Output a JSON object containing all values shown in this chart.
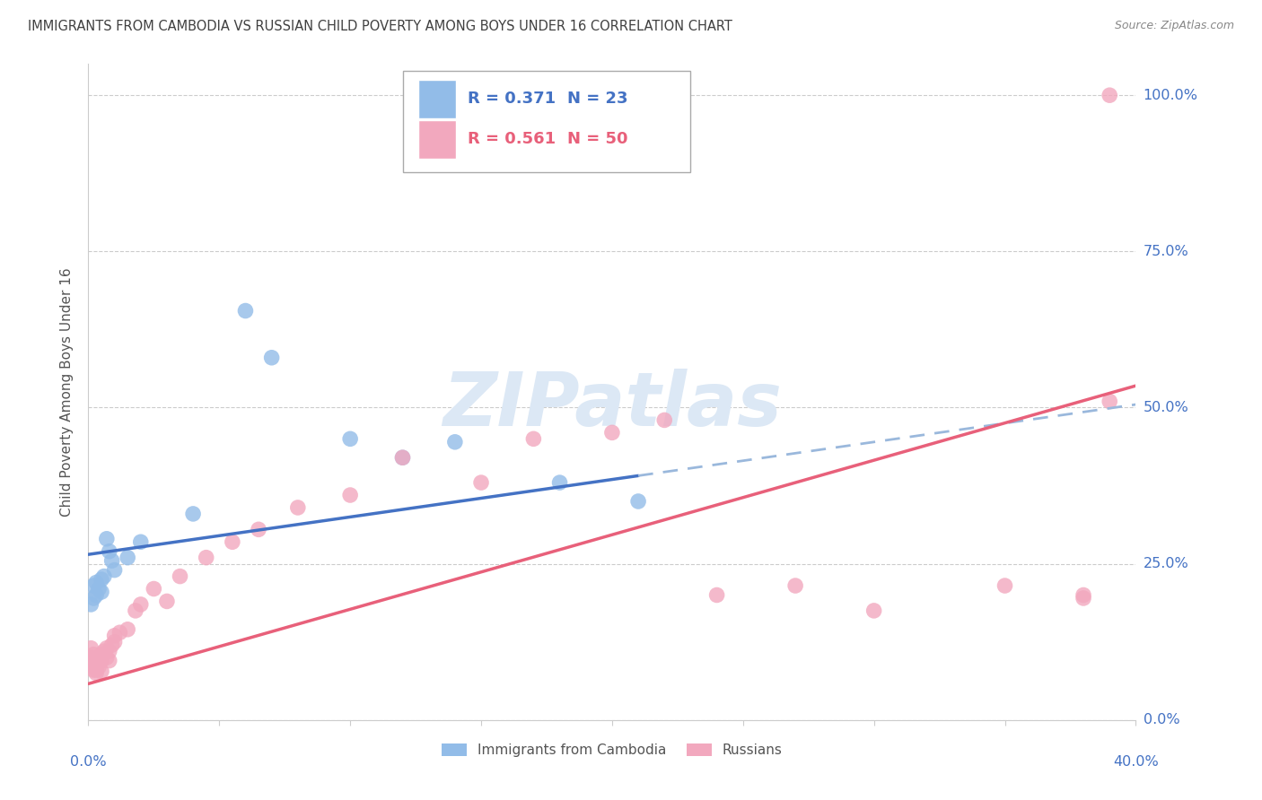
{
  "title": "IMMIGRANTS FROM CAMBODIA VS RUSSIAN CHILD POVERTY AMONG BOYS UNDER 16 CORRELATION CHART",
  "source": "Source: ZipAtlas.com",
  "ylabel": "Child Poverty Among Boys Under 16",
  "ytick_values": [
    0.0,
    0.25,
    0.5,
    0.75,
    1.0
  ],
  "ytick_labels": [
    "0.0%",
    "25.0%",
    "50.0%",
    "75.0%",
    "100.0%"
  ],
  "xlim": [
    0.0,
    0.4
  ],
  "ylim": [
    0.0,
    1.05
  ],
  "xtick_left_label": "0.0%",
  "xtick_right_label": "40.0%",
  "watermark": "ZIPatlas",
  "legend_r1": "R = 0.371",
  "legend_n1": "N = 23",
  "legend_r2": "R = 0.561",
  "legend_n2": "N = 50",
  "series1_color": "#92bce8",
  "series2_color": "#f2a8be",
  "series1_name": "Immigrants from Cambodia",
  "series2_name": "Russians",
  "line1_solid_color": "#4472c4",
  "line1_dashed_color": "#9ab8dc",
  "line2_color": "#e8607a",
  "grid_color": "#cccccc",
  "title_color": "#404040",
  "axis_label_color": "#4472c4",
  "source_color": "#888888",
  "ylabel_color": "#555555",
  "watermark_color": "#dce8f5",
  "legend_border_color": "#aaaaaa",
  "legend_text_color_blue": "#4472c4",
  "legend_text_color_pink": "#e8607a",
  "cambodia_x": [
    0.001,
    0.002,
    0.002,
    0.003,
    0.003,
    0.004,
    0.005,
    0.005,
    0.006,
    0.007,
    0.008,
    0.009,
    0.01,
    0.015,
    0.02,
    0.04,
    0.06,
    0.07,
    0.1,
    0.12,
    0.14,
    0.18,
    0.21
  ],
  "cambodia_y": [
    0.185,
    0.195,
    0.215,
    0.2,
    0.22,
    0.21,
    0.205,
    0.225,
    0.23,
    0.29,
    0.27,
    0.255,
    0.24,
    0.26,
    0.285,
    0.33,
    0.655,
    0.58,
    0.45,
    0.42,
    0.445,
    0.38,
    0.35
  ],
  "russian_x": [
    0.001,
    0.001,
    0.001,
    0.002,
    0.002,
    0.002,
    0.002,
    0.003,
    0.003,
    0.003,
    0.003,
    0.004,
    0.004,
    0.004,
    0.005,
    0.005,
    0.005,
    0.006,
    0.007,
    0.007,
    0.008,
    0.008,
    0.009,
    0.01,
    0.01,
    0.012,
    0.015,
    0.018,
    0.02,
    0.025,
    0.03,
    0.035,
    0.045,
    0.055,
    0.065,
    0.08,
    0.1,
    0.12,
    0.15,
    0.17,
    0.2,
    0.22,
    0.24,
    0.27,
    0.3,
    0.35,
    0.38,
    0.39,
    0.38,
    0.39
  ],
  "russian_y": [
    0.1,
    0.115,
    0.095,
    0.085,
    0.09,
    0.08,
    0.105,
    0.075,
    0.08,
    0.095,
    0.088,
    0.085,
    0.092,
    0.1,
    0.095,
    0.078,
    0.105,
    0.11,
    0.1,
    0.115,
    0.095,
    0.11,
    0.12,
    0.125,
    0.135,
    0.14,
    0.145,
    0.175,
    0.185,
    0.21,
    0.19,
    0.23,
    0.26,
    0.285,
    0.305,
    0.34,
    0.36,
    0.42,
    0.38,
    0.45,
    0.46,
    0.48,
    0.2,
    0.215,
    0.175,
    0.215,
    0.195,
    0.51,
    0.2,
    1.0
  ],
  "line1_x_solid_start": 0.0,
  "line1_x_solid_end": 0.21,
  "line1_x_dashed_start": 0.21,
  "line1_x_dashed_end": 0.4,
  "line1_y_at_0": 0.265,
  "line1_y_at_040": 0.505,
  "line2_y_at_0": 0.058,
  "line2_y_at_040": 0.535
}
